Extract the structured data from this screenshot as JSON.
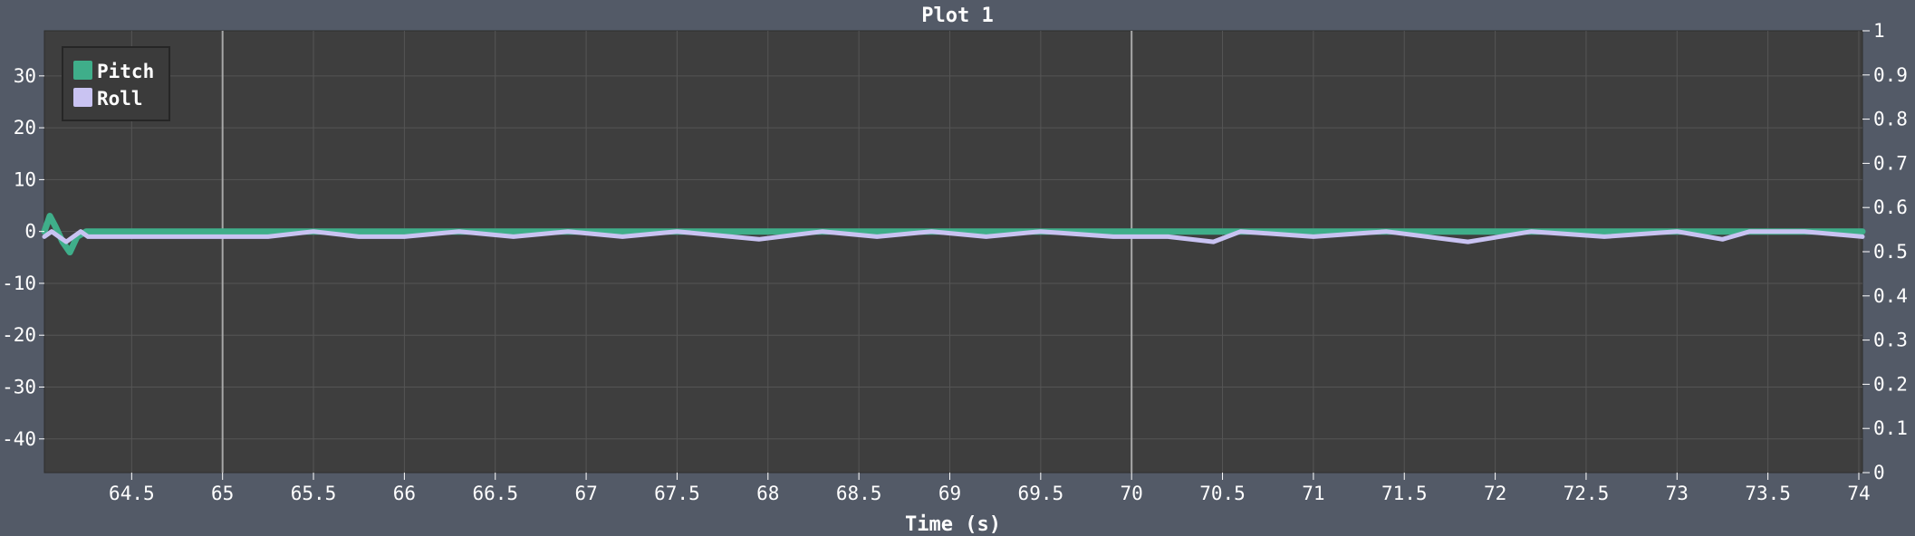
{
  "chart_data": {
    "type": "line",
    "title": "Plot 1",
    "xlabel": "Time (s)",
    "ylabel": "",
    "xlim": [
      64.02,
      74.02
    ],
    "ylim": [
      -46.5,
      38.7
    ],
    "y2lim": [
      0,
      1
    ],
    "x_ticks": [
      "64.5",
      "65",
      "65.5",
      "66",
      "66.5",
      "67",
      "67.5",
      "68",
      "68.5",
      "69",
      "69.5",
      "70",
      "70.5",
      "71",
      "71.5",
      "72",
      "72.5",
      "73",
      "73.5",
      "74"
    ],
    "y_ticks": [
      "30",
      "20",
      "10",
      "0",
      "-10",
      "-20",
      "-30",
      "-40"
    ],
    "y2_ticks": [
      "1",
      "0.9",
      "0.8",
      "0.7",
      "0.6",
      "0.5",
      "0.4",
      "0.3",
      "0.2",
      "0.1",
      "0"
    ],
    "marker_lines_x": [
      65,
      70
    ],
    "grid": true,
    "legend_position": "top-left",
    "series": [
      {
        "name": "Pitch",
        "color": "#3fae8a",
        "x": [
          64.02,
          64.05,
          64.08,
          64.12,
          64.16,
          64.2,
          64.25,
          64.3,
          64.5,
          65.0,
          65.5,
          66.0,
          66.5,
          67.0,
          67.5,
          68.0,
          68.5,
          69.0,
          69.5,
          70.0,
          70.5,
          71.0,
          71.5,
          72.0,
          72.5,
          73.0,
          73.5,
          74.02
        ],
        "y": [
          0,
          3,
          1,
          -2,
          -4,
          -1,
          0,
          0,
          0,
          0,
          0,
          0,
          0,
          0,
          0,
          0,
          0,
          0,
          0,
          0,
          0,
          0,
          0,
          0,
          0,
          0,
          0,
          0
        ]
      },
      {
        "name": "Roll",
        "color": "#c9c3f2",
        "x": [
          64.02,
          64.06,
          64.1,
          64.14,
          64.18,
          64.22,
          64.26,
          64.4,
          64.8,
          65.25,
          65.5,
          65.75,
          66.0,
          66.3,
          66.6,
          66.9,
          67.2,
          67.5,
          67.95,
          68.3,
          68.6,
          68.9,
          69.2,
          69.5,
          69.9,
          70.2,
          70.45,
          70.6,
          71.0,
          71.4,
          71.85,
          72.2,
          72.6,
          73.0,
          73.25,
          73.4,
          73.7,
          74.02
        ],
        "y": [
          -1,
          0,
          -1,
          -2,
          -1,
          0,
          -1,
          -1,
          -1,
          -1,
          0,
          -1,
          -1,
          0,
          -1,
          0,
          -1,
          0,
          -1.5,
          0,
          -1,
          0,
          -1,
          0,
          -1,
          -1,
          -2,
          0,
          -1,
          0,
          -2,
          0,
          -1,
          0,
          -1.5,
          0,
          0,
          -1
        ]
      }
    ]
  }
}
